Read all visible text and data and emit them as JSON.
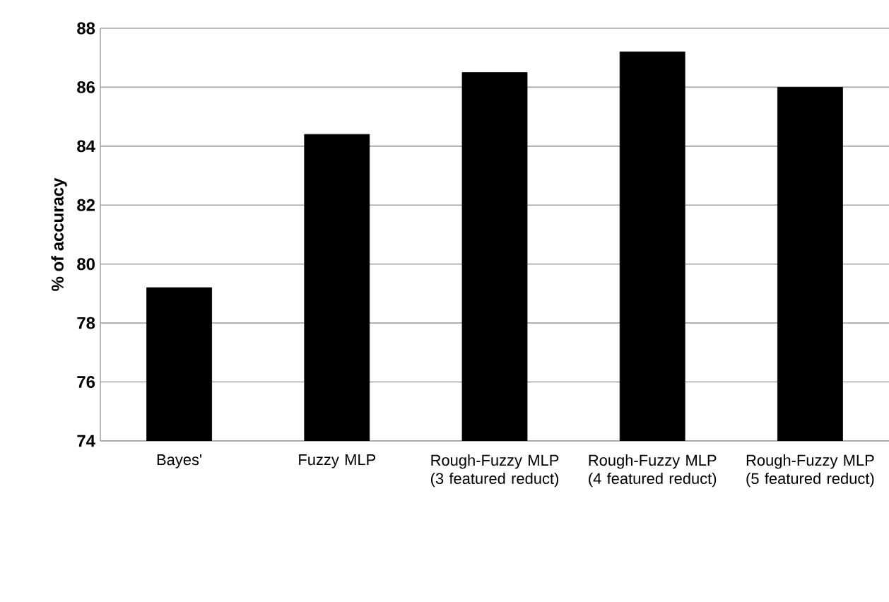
{
  "chart_data": {
    "type": "bar",
    "ylabel": "% of accuracy",
    "categories": [
      "Bayes'",
      "Fuzzy MLP",
      "Rough-Fuzzy MLP (3 featured reduct)",
      "Rough-Fuzzy MLP (4 featured reduct)",
      "Rough-Fuzzy MLP (5 featured reduct)"
    ],
    "values": [
      79.2,
      84.4,
      86.5,
      87.2,
      86.0
    ],
    "color": "#000000",
    "ylim": [
      74,
      88
    ],
    "yticks": [
      74,
      76,
      78,
      80,
      82,
      84,
      86,
      88
    ],
    "grid": "y"
  }
}
